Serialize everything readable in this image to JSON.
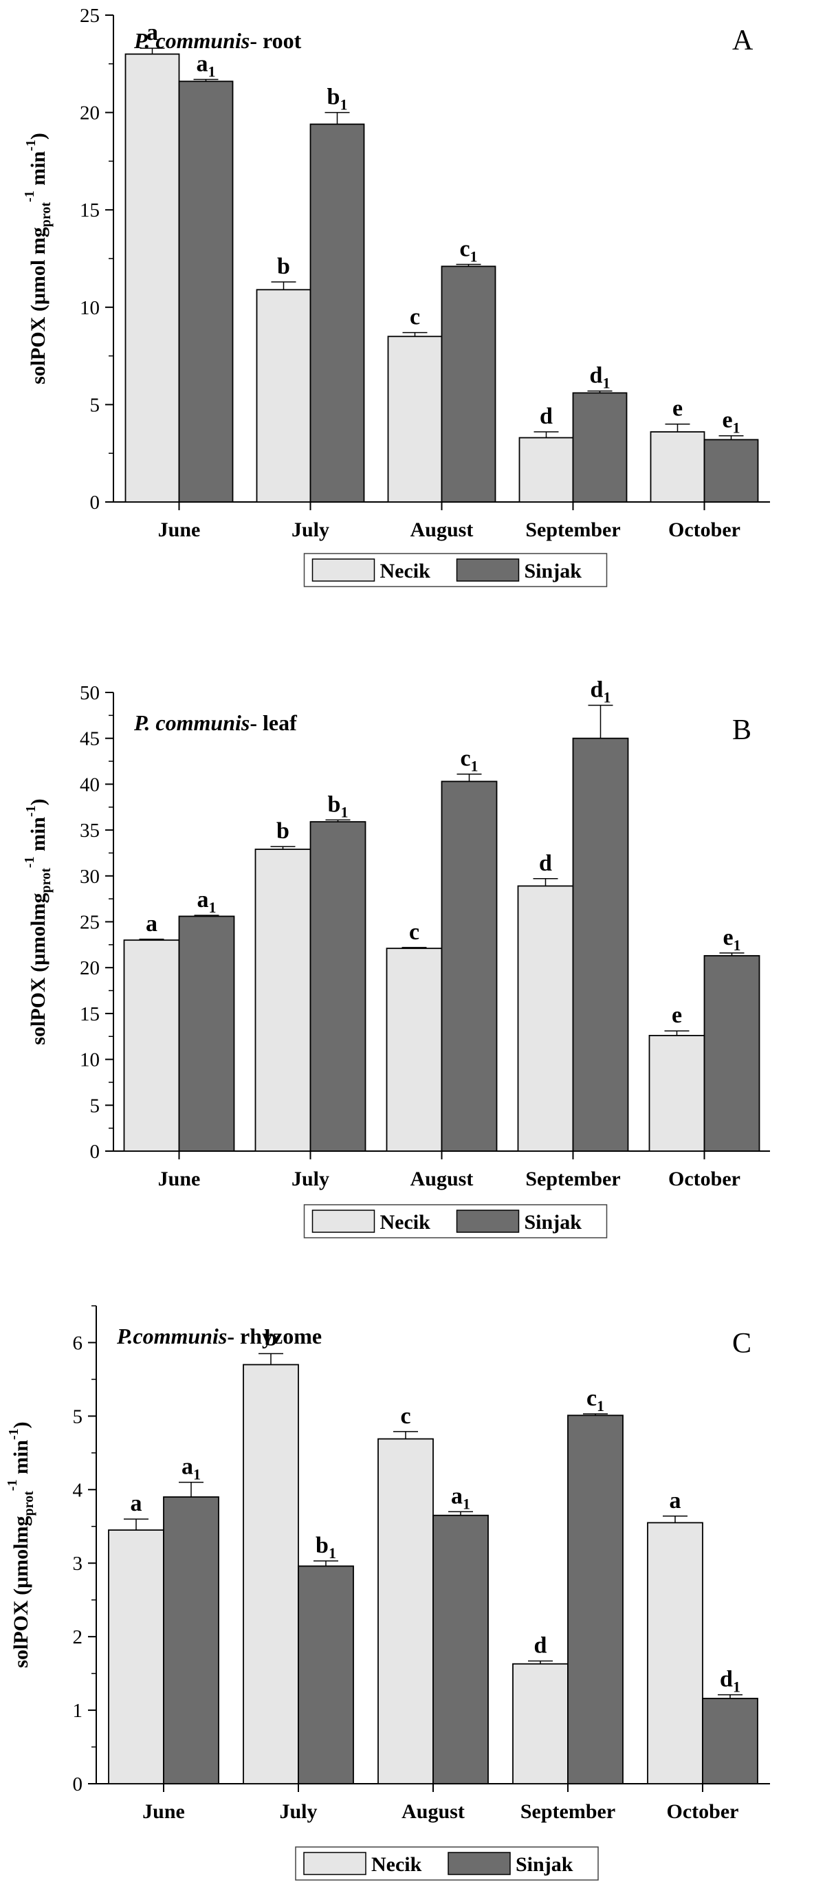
{
  "chart_data": [
    {
      "type": "bar",
      "panel_label": "A",
      "title_italic": "P. communis",
      "title_rest": "- root",
      "ylabel_main": "solPOX (μmol mg",
      "ylabel_sub": "prot",
      "ylabel_tail": " min",
      "ylabel_sup1": "-1",
      "ylabel_sup2": "-1",
      "ylabel_close": ")",
      "categories": [
        "June",
        "July",
        "August",
        "September",
        "October"
      ],
      "ylim": [
        0,
        25
      ],
      "yticks": [
        0,
        5,
        10,
        15,
        20,
        25
      ],
      "legend_position": "bottom-center",
      "grid": false,
      "series": [
        {
          "name": "Necik",
          "color": "#e6e6e6",
          "values": [
            23.0,
            10.9,
            8.5,
            3.3,
            3.6
          ],
          "errors": [
            0.3,
            0.4,
            0.2,
            0.3,
            0.4
          ],
          "letters": [
            "a",
            "b",
            "c",
            "d",
            "e"
          ],
          "subs": [
            "",
            "",
            "",
            "",
            ""
          ]
        },
        {
          "name": "Sinjak",
          "color": "#6d6d6d",
          "values": [
            21.6,
            19.4,
            12.1,
            5.6,
            3.2
          ],
          "errors": [
            0.1,
            0.6,
            0.1,
            0.1,
            0.2
          ],
          "letters": [
            "a",
            "b",
            "c",
            "d",
            "e"
          ],
          "subs": [
            "1",
            "1",
            "1",
            "1",
            "1"
          ]
        }
      ]
    },
    {
      "type": "bar",
      "panel_label": "B",
      "title_italic": "P. communis",
      "title_rest": "- leaf",
      "ylabel_main": "solPOX (μmolmg",
      "ylabel_sub": "prot",
      "ylabel_tail": " min",
      "ylabel_sup1": "-1",
      "ylabel_sup2": "-1",
      "ylabel_close": ")",
      "categories": [
        "June",
        "July",
        "August",
        "September",
        "October"
      ],
      "ylim": [
        0,
        50
      ],
      "yticks": [
        0,
        5,
        10,
        15,
        20,
        25,
        30,
        35,
        40,
        45,
        50
      ],
      "legend_position": "bottom-center",
      "grid": false,
      "series": [
        {
          "name": "Necik",
          "color": "#e6e6e6",
          "values": [
            23.0,
            32.9,
            22.1,
            28.9,
            12.6
          ],
          "errors": [
            0.1,
            0.3,
            0.1,
            0.8,
            0.5
          ],
          "letters": [
            "a",
            "b",
            "c",
            "d",
            "e"
          ],
          "subs": [
            "",
            "",
            "",
            "",
            ""
          ]
        },
        {
          "name": "Sinjak",
          "color": "#6d6d6d",
          "values": [
            25.6,
            35.9,
            40.3,
            45.0,
            21.3
          ],
          "errors": [
            0.1,
            0.2,
            0.8,
            3.6,
            0.3
          ],
          "letters": [
            "a",
            "b",
            "c",
            "d",
            "e"
          ],
          "subs": [
            "1",
            "1",
            "1",
            "1",
            "1"
          ]
        }
      ]
    },
    {
      "type": "bar",
      "panel_label": "C",
      "title_italic": "P.communis",
      "title_rest": "- rhyzome",
      "ylabel_main": "solPOX (μmolmg",
      "ylabel_sub": "prot",
      "ylabel_tail": " min",
      "ylabel_sup1": "-1",
      "ylabel_sup2": "-1",
      "ylabel_close": ")",
      "categories": [
        "June",
        "July",
        "August",
        "September",
        "October"
      ],
      "ylim": [
        0,
        6.5
      ],
      "yticks": [
        0,
        1,
        2,
        3,
        4,
        5,
        6
      ],
      "legend_position": "bottom-center",
      "grid": false,
      "series": [
        {
          "name": "Necik",
          "color": "#e6e6e6",
          "values": [
            3.45,
            5.7,
            4.69,
            1.63,
            3.55
          ],
          "errors": [
            0.15,
            0.15,
            0.1,
            0.04,
            0.09
          ],
          "letters": [
            "a",
            "b",
            "c",
            "d",
            "a"
          ],
          "subs": [
            "",
            "",
            "",
            "",
            ""
          ]
        },
        {
          "name": "Sinjak",
          "color": "#6d6d6d",
          "values": [
            3.9,
            2.96,
            3.65,
            5.01,
            1.16
          ],
          "errors": [
            0.2,
            0.07,
            0.05,
            0.02,
            0.05
          ],
          "letters": [
            "a",
            "b",
            "a",
            "c",
            "d"
          ],
          "subs": [
            "1",
            "1",
            "1",
            "1",
            "1"
          ]
        }
      ]
    }
  ]
}
